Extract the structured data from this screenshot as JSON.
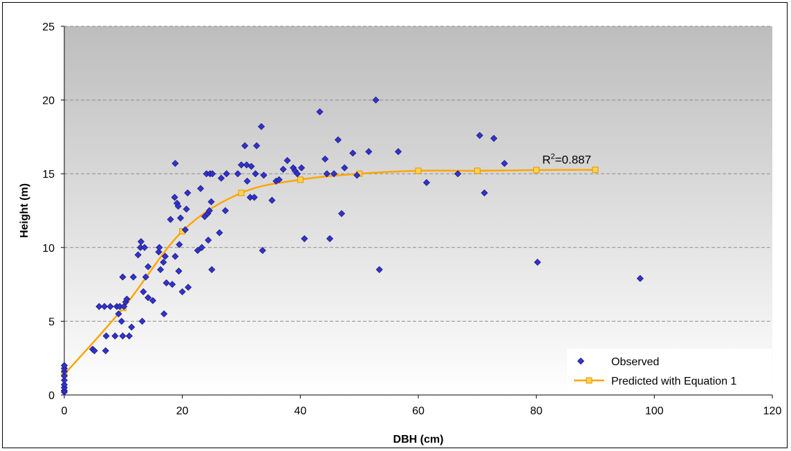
{
  "chart_data": {
    "type": "scatter",
    "xlabel": "DBH (cm)",
    "ylabel": "Height (m)",
    "xlim": [
      0,
      120
    ],
    "ylim": [
      0,
      25
    ],
    "x_ticks": [
      "0",
      "20",
      "40",
      "60",
      "80",
      "100",
      "120"
    ],
    "y_ticks": [
      "0",
      "5",
      "10",
      "15",
      "20",
      "25"
    ],
    "grid": "horizontal dashed",
    "background": "vertical gradient gray to white",
    "legend_position": "bottom-right",
    "annotation": {
      "prefix": "R",
      "superscript": "2",
      "suffix": "=0.887",
      "x": 81,
      "y": 15.7
    },
    "series": [
      {
        "name": "Observed",
        "marker": "diamond",
        "color": "#3333cc",
        "points": [
          [
            0,
            0.2
          ],
          [
            0,
            0.3
          ],
          [
            0,
            0.5
          ],
          [
            0,
            0.7
          ],
          [
            0,
            1.0
          ],
          [
            0,
            1.3
          ],
          [
            0,
            1.6
          ],
          [
            0,
            1.8
          ],
          [
            0,
            2.0
          ],
          [
            4.8,
            3.1
          ],
          [
            5.1,
            3.0
          ],
          [
            5.9,
            6.0
          ],
          [
            6.8,
            6.0
          ],
          [
            7.0,
            3.0
          ],
          [
            7.1,
            4.0
          ],
          [
            7.8,
            6.0
          ],
          [
            8.6,
            4.0
          ],
          [
            8.9,
            6.0
          ],
          [
            9.2,
            5.5
          ],
          [
            9.4,
            6.0
          ],
          [
            9.7,
            5.0
          ],
          [
            9.9,
            8.0
          ],
          [
            9.9,
            4.0
          ],
          [
            10.1,
            6.0
          ],
          [
            10.4,
            6.3
          ],
          [
            10.6,
            6.5
          ],
          [
            11.0,
            4.0
          ],
          [
            11.4,
            4.6
          ],
          [
            11.7,
            8.0
          ],
          [
            12.5,
            9.5
          ],
          [
            12.9,
            10.0
          ],
          [
            13.0,
            10.4
          ],
          [
            13.2,
            5.0
          ],
          [
            13.4,
            7.0
          ],
          [
            13.6,
            10.0
          ],
          [
            13.8,
            8.0
          ],
          [
            14.2,
            6.6
          ],
          [
            14.2,
            8.7
          ],
          [
            15.0,
            6.4
          ],
          [
            16.0,
            9.7
          ],
          [
            16.1,
            10.0
          ],
          [
            16.3,
            8.5
          ],
          [
            16.8,
            9.0
          ],
          [
            16.9,
            5.5
          ],
          [
            17.1,
            9.4
          ],
          [
            17.3,
            7.6
          ],
          [
            18.0,
            11.9
          ],
          [
            18.3,
            7.5
          ],
          [
            18.7,
            13.4
          ],
          [
            18.8,
            15.7
          ],
          [
            18.8,
            9.4
          ],
          [
            19.1,
            13.0
          ],
          [
            19.3,
            12.8
          ],
          [
            19.4,
            8.4
          ],
          [
            19.5,
            10.2
          ],
          [
            19.7,
            12.0
          ],
          [
            20.0,
            7.0
          ],
          [
            20.5,
            11.2
          ],
          [
            20.7,
            12.6
          ],
          [
            20.9,
            13.7
          ],
          [
            21.0,
            7.3
          ],
          [
            22.6,
            9.8
          ],
          [
            23.1,
            14.0
          ],
          [
            23.3,
            10.0
          ],
          [
            23.8,
            12.1
          ],
          [
            24.1,
            15.0
          ],
          [
            24.3,
            12.3
          ],
          [
            24.4,
            10.5
          ],
          [
            24.6,
            12.5
          ],
          [
            24.7,
            15.0
          ],
          [
            24.9,
            13.1
          ],
          [
            25.0,
            8.5
          ],
          [
            25.1,
            15.0
          ],
          [
            26.3,
            11.0
          ],
          [
            26.6,
            14.7
          ],
          [
            27.3,
            12.5
          ],
          [
            27.5,
            15.0
          ],
          [
            29.4,
            15.0
          ],
          [
            30.0,
            15.6
          ],
          [
            30.6,
            16.9
          ],
          [
            30.9,
            15.6
          ],
          [
            31.0,
            14.5
          ],
          [
            31.5,
            13.4
          ],
          [
            31.7,
            15.5
          ],
          [
            32.2,
            13.4
          ],
          [
            32.4,
            15.0
          ],
          [
            32.6,
            16.9
          ],
          [
            33.4,
            18.2
          ],
          [
            33.6,
            9.8
          ],
          [
            33.8,
            14.9
          ],
          [
            35.2,
            13.2
          ],
          [
            35.9,
            14.5
          ],
          [
            36.4,
            14.6
          ],
          [
            37.1,
            15.3
          ],
          [
            37.8,
            15.9
          ],
          [
            38.8,
            15.4
          ],
          [
            39.1,
            15.2
          ],
          [
            39.5,
            15.0
          ],
          [
            40.2,
            15.4
          ],
          [
            40.7,
            10.6
          ],
          [
            43.3,
            19.2
          ],
          [
            44.2,
            16.0
          ],
          [
            44.5,
            15.0
          ],
          [
            45.0,
            10.6
          ],
          [
            45.7,
            15.0
          ],
          [
            46.4,
            17.3
          ],
          [
            47.0,
            12.3
          ],
          [
            47.5,
            15.4
          ],
          [
            48.9,
            16.4
          ],
          [
            49.6,
            14.9
          ],
          [
            51.6,
            16.5
          ],
          [
            52.8,
            20.0
          ],
          [
            53.4,
            8.5
          ],
          [
            56.6,
            16.5
          ],
          [
            61.4,
            14.4
          ],
          [
            66.7,
            15.0
          ],
          [
            70.4,
            17.6
          ],
          [
            71.2,
            13.7
          ],
          [
            72.8,
            17.4
          ],
          [
            74.6,
            15.7
          ],
          [
            80.2,
            9.0
          ],
          [
            97.6,
            7.9
          ]
        ]
      },
      {
        "name": "Predicted with Equation 1",
        "marker": "square",
        "color": "#ffa500",
        "points": [
          [
            0,
            1.4
          ],
          [
            10,
            5.9
          ],
          [
            20,
            11.1
          ],
          [
            30,
            13.7
          ],
          [
            40,
            14.6
          ],
          [
            50,
            15.0
          ],
          [
            60,
            15.2
          ],
          [
            70,
            15.2
          ],
          [
            80,
            15.25
          ],
          [
            90,
            15.27
          ]
        ]
      }
    ]
  }
}
